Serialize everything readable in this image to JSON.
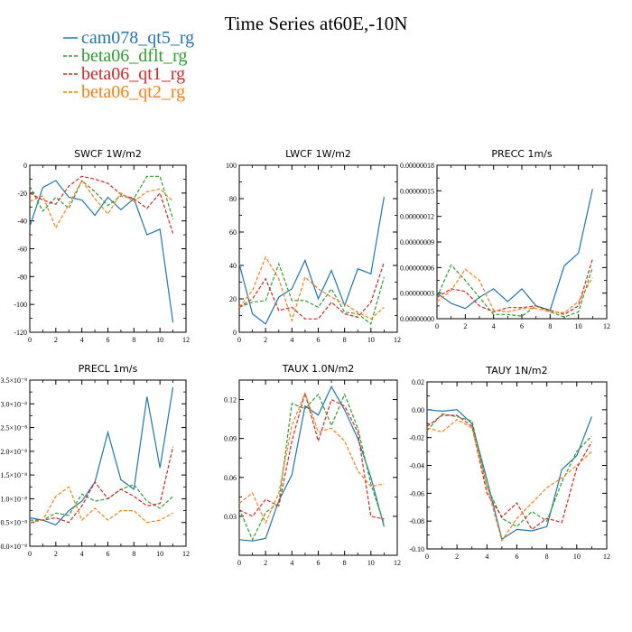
{
  "figure": {
    "title": "Time Series at60E,-10N"
  },
  "legend": [
    {
      "name": "cam078_qt5_rg",
      "color": "#1f77b4",
      "dash": ""
    },
    {
      "name": "beta06_dflt_rg",
      "color": "#2ca02c",
      "dash": "4,2"
    },
    {
      "name": "beta06_qt1_rg",
      "color": "#d62728",
      "dash": "4,2"
    },
    {
      "name": "beta06_qt2_rg",
      "color": "#ff7f0e",
      "dash": "4,2"
    }
  ],
  "chart_data": [
    {
      "type": "line",
      "title": "SWCF   1W/m2",
      "x": [
        0,
        1,
        2,
        3,
        4,
        5,
        6,
        7,
        8,
        9,
        10,
        11
      ],
      "xlim": [
        0,
        12
      ],
      "xticks": [
        0,
        2,
        4,
        6,
        8,
        10,
        12
      ],
      "ylim": [
        -120,
        0
      ],
      "yticks": [
        0,
        -20,
        -40,
        -60,
        -80,
        -100,
        -120
      ],
      "ytick_labels": [
        "0",
        "-20",
        "-40",
        "-60",
        "-80",
        "-100",
        "-120"
      ],
      "series": [
        {
          "name": "cam078_qt5_rg",
          "values": [
            -44,
            -16,
            -11,
            -23,
            -25,
            -36,
            -23,
            -32,
            -24,
            -50,
            -46,
            -113
          ]
        },
        {
          "name": "beta06_dflt_rg",
          "values": [
            -15,
            -33,
            -23,
            -31,
            -11,
            -19,
            -29,
            -22,
            -24,
            -8,
            -8,
            -39
          ]
        },
        {
          "name": "beta06_qt1_rg",
          "values": [
            -20,
            -25,
            -28,
            -15,
            -8,
            -10,
            -13,
            -21,
            -24,
            -31,
            -20,
            -49
          ]
        },
        {
          "name": "beta06_qt2_rg",
          "values": [
            -26,
            -22,
            -45,
            -28,
            -11,
            -24,
            -35,
            -20,
            -26,
            -19,
            -17,
            -26
          ]
        }
      ]
    },
    {
      "type": "line",
      "title": "LWCF   1W/m2",
      "x": [
        0,
        1,
        2,
        3,
        4,
        5,
        6,
        7,
        8,
        9,
        10,
        11
      ],
      "xlim": [
        0,
        12
      ],
      "xticks": [
        0,
        2,
        4,
        6,
        8,
        10,
        12
      ],
      "ylim": [
        0,
        100
      ],
      "yticks": [
        0,
        20,
        40,
        60,
        80,
        100
      ],
      "ytick_labels": [
        "0",
        "20",
        "40",
        "60",
        "80",
        "100"
      ],
      "series": [
        {
          "name": "cam078_qt5_rg",
          "values": [
            41,
            11,
            5,
            21,
            26,
            43,
            20,
            37,
            16,
            38,
            35,
            81
          ]
        },
        {
          "name": "beta06_dflt_rg",
          "values": [
            15,
            18,
            19,
            41,
            19,
            19,
            15,
            26,
            12,
            11,
            5,
            33
          ]
        },
        {
          "name": "beta06_qt1_rg",
          "values": [
            15,
            20,
            32,
            13,
            15,
            8,
            8,
            18,
            11,
            9,
            18,
            42
          ]
        },
        {
          "name": "beta06_qt2_rg",
          "values": [
            15,
            25,
            45,
            32,
            7,
            33,
            26,
            21,
            17,
            12,
            8,
            15
          ]
        }
      ]
    },
    {
      "type": "line",
      "title": "PRECC   1m/s",
      "x": [
        0,
        1,
        2,
        3,
        4,
        5,
        6,
        7,
        8,
        9,
        10,
        11
      ],
      "xlim": [
        0,
        12
      ],
      "xticks": [
        0,
        2,
        4,
        6,
        8,
        10,
        12
      ],
      "ylim": [
        0,
        1.8e-07
      ],
      "yticks": [
        0,
        3e-08,
        6e-08,
        9e-08,
        1.2e-07,
        1.5e-07,
        1.8e-07
      ],
      "ytick_labels": [
        "0.00000000",
        "0.00000003",
        "0.00000006",
        "0.00000009",
        "0.00000012",
        "0.00000015",
        "0.00000018"
      ],
      "series": [
        {
          "name": "cam078_qt5_rg",
          "values": [
            3e-08,
            1.8e-08,
            1.2e-08,
            2.5e-08,
            3.5e-08,
            2e-08,
            3.5e-08,
            1.5e-08,
            1e-08,
            6.2e-08,
            7.7e-08,
            1.52e-07
          ]
        },
        {
          "name": "beta06_dflt_rg",
          "values": [
            2.5e-08,
            6.3e-08,
            4.5e-08,
            2.5e-08,
            5e-09,
            5e-09,
            3e-09,
            1.5e-08,
            8e-09,
            2e-09,
            8e-09,
            6e-08
          ]
        },
        {
          "name": "beta06_qt1_rg",
          "values": [
            2.5e-08,
            3.5e-08,
            3.2e-08,
            1.5e-08,
            8e-09,
            1.3e-08,
            1.3e-08,
            1.5e-08,
            1e-08,
            5e-09,
            1.5e-08,
            7e-08
          ]
        },
        {
          "name": "beta06_qt2_rg",
          "values": [
            2e-08,
            3.3e-08,
            5.8e-08,
            4.5e-08,
            1e-08,
            8e-09,
            1.2e-08,
            1.2e-08,
            8e-09,
            7e-09,
            2e-08,
            4.8e-08
          ]
        }
      ]
    },
    {
      "type": "line",
      "title": "PRECL   1m/s",
      "x": [
        0,
        1,
        2,
        3,
        4,
        5,
        6,
        7,
        8,
        9,
        10,
        11
      ],
      "xlim": [
        0,
        12
      ],
      "xticks": [
        0,
        2,
        4,
        6,
        8,
        10,
        12
      ],
      "ylim": [
        0,
        3.5
      ],
      "yticks": [
        0,
        0.5,
        1,
        1.5,
        2,
        2.5,
        3,
        3.5
      ],
      "ytick_labels": [
        "0.0×10⁻⁸",
        "0.5×10⁻⁸",
        "1.0×10⁻⁸",
        "1.5×10⁻⁸",
        "2.0×10⁻⁸",
        "2.5×10⁻⁸",
        "3.0×10⁻⁸",
        "3.5×10⁻⁸"
      ],
      "series": [
        {
          "name": "cam078_qt5_rg",
          "values": [
            0.6,
            0.55,
            0.45,
            0.75,
            0.95,
            1.35,
            2.4,
            1.4,
            1.2,
            3.15,
            1.65,
            3.35
          ]
        },
        {
          "name": "beta06_dflt_rg",
          "values": [
            0.55,
            0.55,
            0.7,
            0.65,
            1.1,
            0.95,
            1.0,
            1.2,
            1.3,
            0.95,
            0.8,
            1.05
          ]
        },
        {
          "name": "beta06_qt1_rg",
          "values": [
            0.5,
            0.55,
            0.6,
            0.5,
            0.85,
            1.35,
            1.0,
            1.2,
            1.05,
            0.85,
            0.9,
            2.1
          ]
        },
        {
          "name": "beta06_qt2_rg",
          "values": [
            0.5,
            0.55,
            1.05,
            1.25,
            0.55,
            0.8,
            0.55,
            0.75,
            0.75,
            0.5,
            0.55,
            0.7
          ]
        }
      ]
    },
    {
      "type": "line",
      "title": "TAUX   1.0N/m2",
      "x": [
        0,
        1,
        2,
        3,
        4,
        5,
        6,
        7,
        8,
        9,
        10,
        11
      ],
      "xlim": [
        0,
        12
      ],
      "xticks": [
        0,
        2,
        4,
        6,
        8,
        10,
        12
      ],
      "ylim": [
        0,
        0.135
      ],
      "yticks": [
        0.03,
        0.06,
        0.09,
        0.12
      ],
      "ytick_labels": [
        "0.03",
        "0.06",
        "0.09",
        "0.12"
      ],
      "series": [
        {
          "name": "cam078_qt5_rg",
          "values": [
            0.012,
            0.011,
            0.013,
            0.042,
            0.062,
            0.115,
            0.108,
            0.13,
            0.112,
            0.09,
            0.06,
            0.022
          ]
        },
        {
          "name": "beta06_dflt_rg",
          "values": [
            0.036,
            0.012,
            0.033,
            0.04,
            0.117,
            0.113,
            0.124,
            0.1,
            0.124,
            0.098,
            0.055,
            0.024
          ]
        },
        {
          "name": "beta06_qt1_rg",
          "values": [
            0.035,
            0.03,
            0.043,
            0.038,
            0.088,
            0.125,
            0.088,
            0.12,
            0.115,
            0.095,
            0.03,
            0.028
          ]
        },
        {
          "name": "beta06_qt2_rg",
          "values": [
            0.04,
            0.048,
            0.025,
            0.048,
            0.1,
            0.125,
            0.095,
            0.098,
            0.088,
            0.065,
            0.053,
            0.055
          ]
        }
      ]
    },
    {
      "type": "line",
      "title": "TAUY   1N/m2",
      "x": [
        0,
        1,
        2,
        3,
        4,
        5,
        6,
        7,
        8,
        9,
        10,
        11
      ],
      "xlim": [
        0,
        12
      ],
      "xticks": [
        0,
        2,
        4,
        6,
        8,
        10,
        12
      ],
      "ylim": [
        -0.1,
        0.02
      ],
      "yticks": [
        0.02,
        0,
        -0.02,
        -0.04,
        -0.06,
        -0.08,
        -0.1
      ],
      "ytick_labels": [
        "0.02",
        "0.00",
        "-0.02",
        "-0.04",
        "-0.06",
        "-0.08",
        "-0.10"
      ],
      "series": [
        {
          "name": "cam078_qt5_rg",
          "values": [
            0.0,
            -0.001,
            0.0,
            -0.01,
            -0.05,
            -0.093,
            -0.086,
            -0.087,
            -0.084,
            -0.043,
            -0.033,
            -0.005
          ]
        },
        {
          "name": "beta06_dflt_rg",
          "values": [
            -0.015,
            -0.003,
            -0.005,
            -0.008,
            -0.055,
            -0.078,
            -0.084,
            -0.073,
            -0.08,
            -0.052,
            -0.03,
            -0.019
          ]
        },
        {
          "name": "beta06_qt1_rg",
          "values": [
            -0.012,
            -0.004,
            -0.004,
            -0.012,
            -0.06,
            -0.077,
            -0.067,
            -0.086,
            -0.078,
            -0.081,
            -0.042,
            -0.023
          ]
        },
        {
          "name": "beta06_qt2_rg",
          "values": [
            -0.013,
            -0.016,
            -0.007,
            -0.013,
            -0.055,
            -0.094,
            -0.078,
            -0.067,
            -0.056,
            -0.049,
            -0.04,
            -0.03
          ]
        }
      ]
    }
  ]
}
